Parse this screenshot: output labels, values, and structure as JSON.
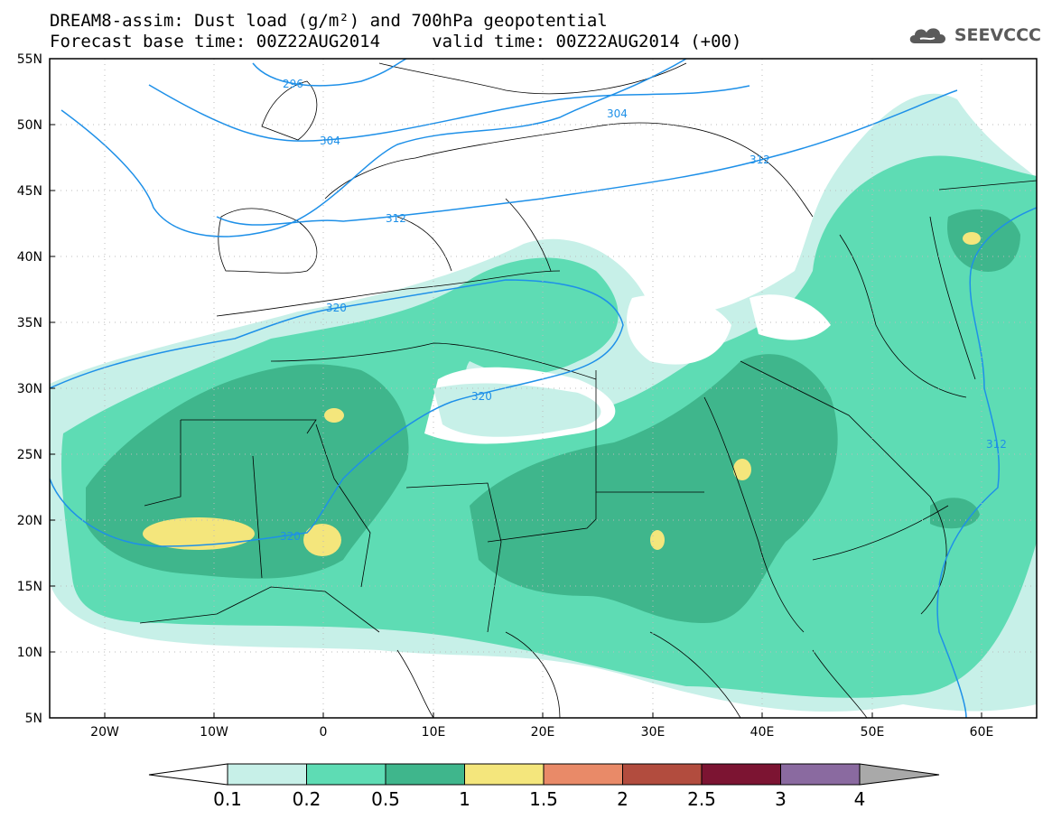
{
  "title_line1": "DREAM8-assim: Dust load (g/m²) and 700hPa geopotential",
  "title_line2": "Forecast base time: 00Z22AUG2014     valid time: 00Z22AUG2014 (+00)",
  "logo": {
    "text": "SEEVCCC",
    "icon": "cloud-icon"
  },
  "map": {
    "lon_range": [
      -25,
      65
    ],
    "lat_range": [
      5,
      55
    ],
    "lat_ticks": [
      "55N",
      "50N",
      "45N",
      "40N",
      "35N",
      "30N",
      "25N",
      "20N",
      "15N",
      "10N",
      "5N"
    ],
    "lon_ticks": [
      "20W",
      "10W",
      "0",
      "10E",
      "20E",
      "30E",
      "40E",
      "50E",
      "60E"
    ],
    "contour_labels": [
      "296",
      "304",
      "304",
      "312",
      "312",
      "312",
      "320",
      "320",
      "320"
    ]
  },
  "colorbar": {
    "labels": [
      "0.1",
      "0.2",
      "0.5",
      "1",
      "1.5",
      "2",
      "2.5",
      "3",
      "4"
    ],
    "colors": [
      "#c7f0e8",
      "#5edcb4",
      "#3fb68c",
      "#f4e67c",
      "#e98a68",
      "#b24c3e",
      "#7c1432",
      "#8a6aa0",
      "#a9a9a9"
    ]
  }
}
